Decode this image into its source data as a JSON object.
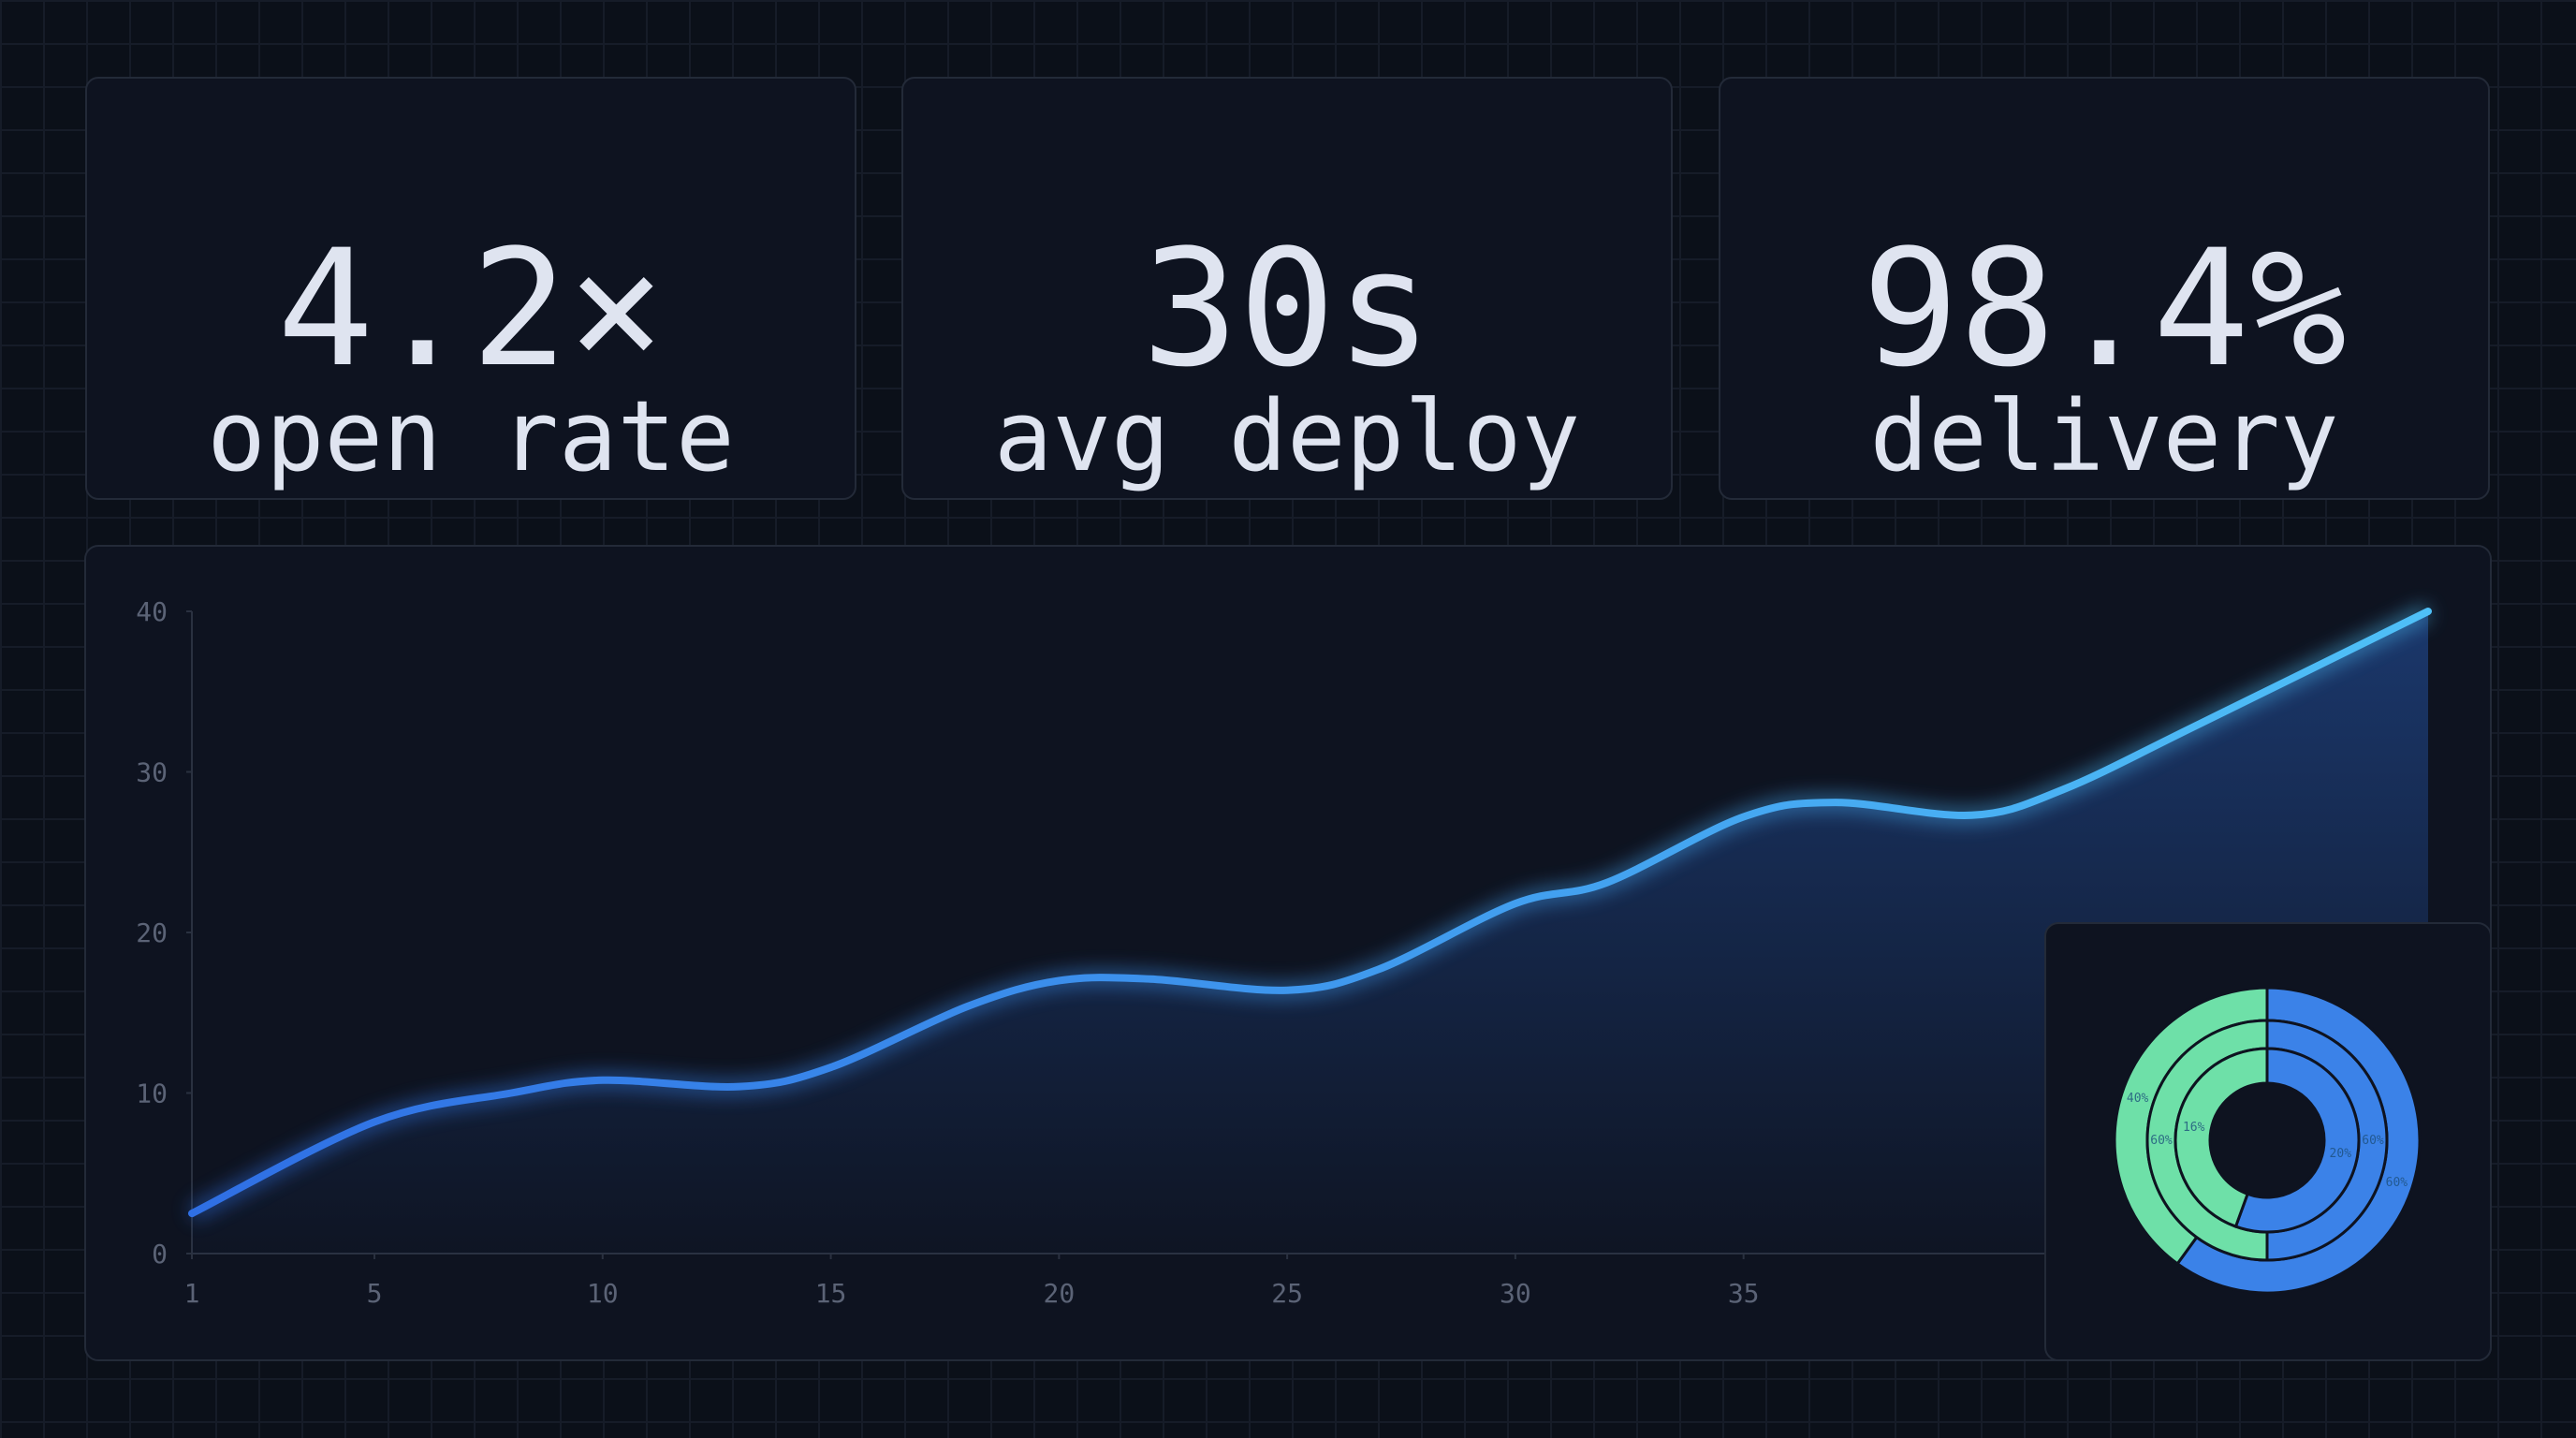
{
  "stats": [
    {
      "value": "4.2×",
      "label": "open rate"
    },
    {
      "value": "30s",
      "label": "avg deploy"
    },
    {
      "value": "98.4%",
      "label": "delivery"
    }
  ],
  "chart_data": [
    {
      "type": "line",
      "x": [
        1,
        5,
        8,
        10,
        13,
        15,
        18,
        20,
        22,
        25,
        27,
        30,
        32,
        35,
        37,
        40,
        42,
        45,
        50
      ],
      "series": [
        {
          "values": [
            2.5,
            8.2,
            10,
            10.8,
            10.4,
            11.6,
            15.4,
            17,
            17.1,
            16.4,
            17.7,
            21.8,
            23.1,
            27.2,
            28.1,
            27.3,
            28.9,
            33,
            40
          ],
          "colors": [
            "#2f6fe4",
            "#4fc0f7"
          ]
        }
      ],
      "xlim": [
        1,
        50
      ],
      "ylim": [
        0,
        40
      ],
      "xticks": [
        1,
        5,
        10,
        15,
        20,
        25,
        30,
        35
      ],
      "yticks": [
        0,
        10,
        20,
        30,
        40
      ]
    },
    {
      "type": "pie",
      "colors": [
        "#3b82e8",
        "#6ee0a8"
      ],
      "rings": [
        {
          "values": [
            60,
            40
          ],
          "value_labels": [
            "60%",
            "40%"
          ]
        },
        {
          "values": [
            60,
            60
          ],
          "value_labels": [
            "60%",
            "60%"
          ]
        },
        {
          "values": [
            20,
            16
          ],
          "value_labels": [
            "20%",
            "16%"
          ]
        }
      ]
    }
  ]
}
